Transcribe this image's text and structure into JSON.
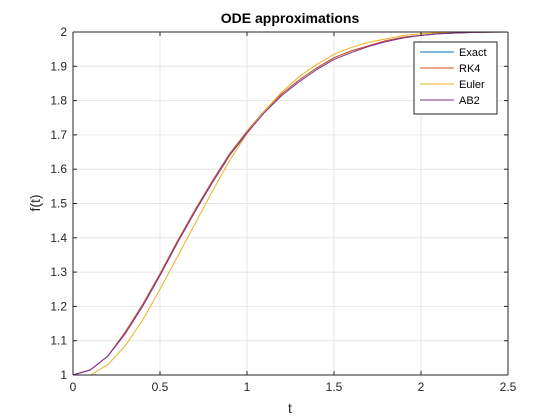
{
  "chart_data": {
    "type": "line",
    "title": "ODE approximations",
    "xlabel": "t",
    "ylabel": "f(t)",
    "xlim": [
      0,
      2.5
    ],
    "ylim": [
      1,
      2
    ],
    "xticks": [
      0,
      0.5,
      1,
      1.5,
      2,
      2.5
    ],
    "xtick_labels": [
      "0",
      "0.5",
      "1",
      "1.5",
      "2",
      "2.5"
    ],
    "yticks": [
      1,
      1.1,
      1.2,
      1.3,
      1.4,
      1.5,
      1.6,
      1.7,
      1.8,
      1.9,
      2
    ],
    "ytick_labels": [
      "1",
      "1.1",
      "1.2",
      "1.3",
      "1.4",
      "1.5",
      "1.6",
      "1.7",
      "1.8",
      "1.9",
      "2"
    ],
    "grid": true,
    "legend_position": "top-right",
    "colors": {
      "exact": "#0072BD",
      "rk4": "#D95319",
      "euler": "#EDB120",
      "ab2": "#7E2F8E",
      "axis": "#262626",
      "grid": "#e6e6e6"
    },
    "series": [
      {
        "name": "Exact",
        "key": "exact",
        "x": [
          0,
          0.1,
          0.2,
          0.3,
          0.4,
          0.5,
          0.6,
          0.7,
          0.8,
          0.9,
          1.0,
          1.1,
          1.2,
          1.3,
          1.4,
          1.5,
          1.6,
          1.7,
          1.8,
          1.9,
          2.0,
          2.1,
          2.2,
          2.3,
          2.4,
          2.5
        ],
        "y": [
          1.0,
          1.015,
          1.055,
          1.125,
          1.205,
          1.295,
          1.39,
          1.48,
          1.565,
          1.645,
          1.71,
          1.77,
          1.82,
          1.86,
          1.895,
          1.925,
          1.945,
          1.96,
          1.975,
          1.985,
          1.99,
          1.995,
          1.997,
          1.999,
          1.9995,
          2.0
        ]
      },
      {
        "name": "RK4",
        "key": "rk4",
        "x": [
          0,
          0.1,
          0.2,
          0.3,
          0.4,
          0.5,
          0.6,
          0.7,
          0.8,
          0.9,
          1.0,
          1.1,
          1.2,
          1.3,
          1.4,
          1.5,
          1.6,
          1.7,
          1.8,
          1.9,
          2.0,
          2.1,
          2.2,
          2.3,
          2.4,
          2.5
        ],
        "y": [
          1.0,
          1.015,
          1.055,
          1.125,
          1.205,
          1.295,
          1.39,
          1.48,
          1.565,
          1.645,
          1.71,
          1.77,
          1.82,
          1.86,
          1.895,
          1.925,
          1.945,
          1.96,
          1.975,
          1.985,
          1.99,
          1.995,
          1.997,
          1.999,
          1.9995,
          2.0
        ]
      },
      {
        "name": "Euler",
        "key": "euler",
        "x": [
          0,
          0.1,
          0.2,
          0.3,
          0.4,
          0.5,
          0.6,
          0.7,
          0.8,
          0.9,
          1.0,
          1.1,
          1.2,
          1.3,
          1.4,
          1.5,
          1.6,
          1.7,
          1.8,
          1.9,
          2.0,
          2.1,
          2.2,
          2.3,
          2.4,
          2.5
        ],
        "y": [
          1.0,
          1.0,
          1.03,
          1.085,
          1.16,
          1.25,
          1.345,
          1.44,
          1.535,
          1.625,
          1.705,
          1.77,
          1.825,
          1.87,
          1.905,
          1.935,
          1.955,
          1.97,
          1.98,
          1.99,
          1.995,
          1.998,
          1.999,
          2.0,
          2.0,
          2.0
        ]
      },
      {
        "name": "AB2",
        "key": "ab2",
        "x": [
          0,
          0.1,
          0.2,
          0.3,
          0.4,
          0.5,
          0.6,
          0.7,
          0.8,
          0.9,
          1.0,
          1.1,
          1.2,
          1.3,
          1.4,
          1.5,
          1.6,
          1.7,
          1.8,
          1.9,
          2.0,
          2.1,
          2.2,
          2.3,
          2.4,
          2.5
        ],
        "y": [
          1.0,
          1.015,
          1.055,
          1.12,
          1.2,
          1.29,
          1.385,
          1.475,
          1.56,
          1.64,
          1.705,
          1.765,
          1.815,
          1.855,
          1.89,
          1.92,
          1.94,
          1.958,
          1.972,
          1.983,
          1.99,
          1.995,
          1.997,
          1.999,
          1.9995,
          2.0
        ]
      }
    ]
  }
}
